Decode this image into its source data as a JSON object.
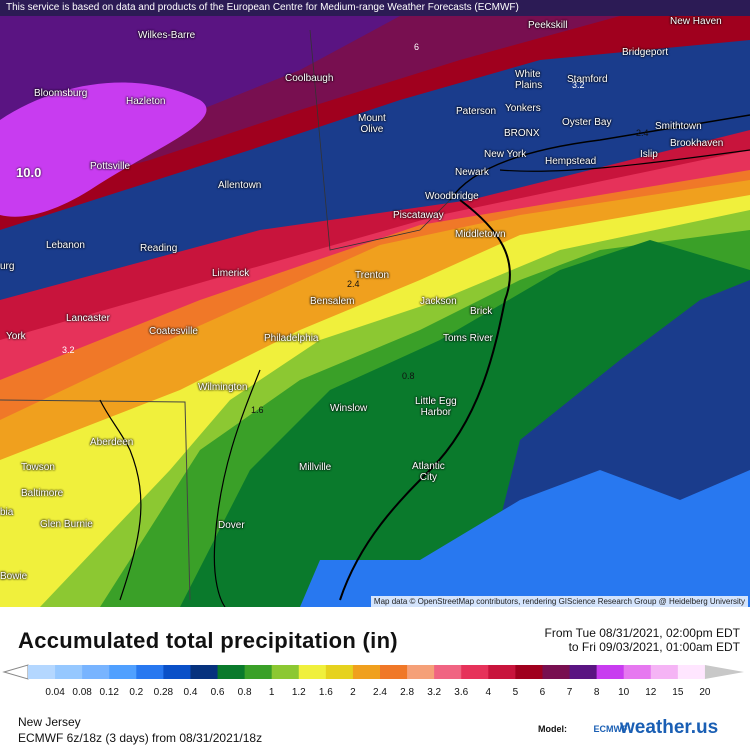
{
  "banner": "This service is based on data and products of the European Centre for Medium-range Weather Forecasts (ECMWF)",
  "attribution": "Map data © OpenStreetMap contributors, rendering GIScience Research Group @ Heidelberg University",
  "cities": [
    {
      "id": "peekskill",
      "name": "Peekskill"
    },
    {
      "id": "new-haven",
      "name": "New Haven"
    },
    {
      "id": "wilkes-barre",
      "name": "Wilkes-Barre"
    },
    {
      "id": "bridgeport",
      "name": "Bridgeport"
    },
    {
      "id": "bloomsburg",
      "name": "Bloomsburg"
    },
    {
      "id": "coolbaugh",
      "name": "Coolbaugh"
    },
    {
      "id": "white-plains",
      "name": "White\nPlains"
    },
    {
      "id": "stamford",
      "name": "Stamford"
    },
    {
      "id": "hazleton",
      "name": "Hazleton"
    },
    {
      "id": "paterson",
      "name": "Paterson"
    },
    {
      "id": "yonkers",
      "name": "Yonkers"
    },
    {
      "id": "mount-olive",
      "name": "Mount\nOlive"
    },
    {
      "id": "oyster-bay",
      "name": "Oyster Bay"
    },
    {
      "id": "smithtown",
      "name": "Smithtown"
    },
    {
      "id": "bronx",
      "name": "BRONX"
    },
    {
      "id": "brookhaven",
      "name": "Brookhaven"
    },
    {
      "id": "pottsville",
      "name": "Pottsville"
    },
    {
      "id": "new-york",
      "name": "New York"
    },
    {
      "id": "hempstead",
      "name": "Hempstead"
    },
    {
      "id": "islip",
      "name": "Islip"
    },
    {
      "id": "newark",
      "name": "Newark"
    },
    {
      "id": "allentown",
      "name": "Allentown"
    },
    {
      "id": "woodbridge",
      "name": "Woodbridge"
    },
    {
      "id": "piscataway",
      "name": "Piscataway"
    },
    {
      "id": "middletown",
      "name": "Middletown"
    },
    {
      "id": "lebanon",
      "name": "Lebanon"
    },
    {
      "id": "reading",
      "name": "Reading"
    },
    {
      "id": "limerick",
      "name": "Limerick"
    },
    {
      "id": "trenton",
      "name": "Trenton"
    },
    {
      "id": "bensalem",
      "name": "Bensalem"
    },
    {
      "id": "jackson",
      "name": "Jackson"
    },
    {
      "id": "lancaster",
      "name": "Lancaster"
    },
    {
      "id": "brick",
      "name": "Brick"
    },
    {
      "id": "coatesville",
      "name": "Coatesville"
    },
    {
      "id": "toms-river",
      "name": "Toms River"
    },
    {
      "id": "york",
      "name": "York"
    },
    {
      "id": "philadelphia",
      "name": "Philadelphia"
    },
    {
      "id": "wilmington",
      "name": "Wilmington"
    },
    {
      "id": "winslow",
      "name": "Winslow"
    },
    {
      "id": "little-egg-harbor",
      "name": "Little Egg\nHarbor"
    },
    {
      "id": "aberdeen",
      "name": "Aberdeen"
    },
    {
      "id": "atlantic-city",
      "name": "Atlantic\nCity"
    },
    {
      "id": "towson",
      "name": "Towson"
    },
    {
      "id": "millville",
      "name": "Millville"
    },
    {
      "id": "baltimore",
      "name": "Baltimore"
    },
    {
      "id": "glen-burnie",
      "name": "Glen Burnie"
    },
    {
      "id": "dover",
      "name": "Dover"
    },
    {
      "id": "bowie",
      "name": "Bowie"
    },
    {
      "id": "bia",
      "name": "bia"
    },
    {
      "id": "urg",
      "name": "urg"
    }
  ],
  "contour_values": [
    {
      "id": "v10",
      "text": "10.0",
      "big": true
    },
    {
      "id": "v32a",
      "text": "3.2"
    },
    {
      "id": "v32b",
      "text": "3.2"
    },
    {
      "id": "v24a",
      "text": "2.4"
    },
    {
      "id": "v24b",
      "text": "2.4"
    },
    {
      "id": "v16",
      "text": "1.6"
    },
    {
      "id": "v08",
      "text": "0.8"
    },
    {
      "id": "v6",
      "text": "6"
    }
  ],
  "legend": {
    "title": "Accumulated total precipitation (in)",
    "period_from": "From Tue 08/31/2021, 02:00pm EDT",
    "period_to": "to Fri 09/03/2021, 01:00am EDT",
    "bins": [
      {
        "label": "0.04",
        "color": "#b4d7ff"
      },
      {
        "label": "0.08",
        "color": "#96c8ff"
      },
      {
        "label": "0.12",
        "color": "#78b4ff"
      },
      {
        "label": "0.2",
        "color": "#50a0ff"
      },
      {
        "label": "0.28",
        "color": "#2878f0"
      },
      {
        "label": "0.4",
        "color": "#0a50c8"
      },
      {
        "label": "0.6",
        "color": "#06327e"
      },
      {
        "label": "0.8",
        "color": "#0a7a2c"
      },
      {
        "label": "1",
        "color": "#3aa028"
      },
      {
        "label": "1.2",
        "color": "#8cc832"
      },
      {
        "label": "1.6",
        "color": "#f0f03c"
      },
      {
        "label": "2",
        "color": "#e6d21e"
      },
      {
        "label": "2.4",
        "color": "#f0a01e"
      },
      {
        "label": "2.8",
        "color": "#f07828"
      },
      {
        "label": "3.2",
        "color": "#f5a078"
      },
      {
        "label": "3.6",
        "color": "#f06482"
      },
      {
        "label": "4",
        "color": "#e6325a"
      },
      {
        "label": "5",
        "color": "#c8143c"
      },
      {
        "label": "6",
        "color": "#a0001e"
      },
      {
        "label": "7",
        "color": "#780f50"
      },
      {
        "label": "8",
        "color": "#5a1482"
      },
      {
        "label": "10",
        "color": "#c83cf0"
      },
      {
        "label": "12",
        "color": "#e678f0"
      },
      {
        "label": "15",
        "color": "#f5b4f5"
      },
      {
        "label": "20",
        "color": "#ffe6ff"
      }
    ],
    "over_color": "#c8c8c8"
  },
  "region": "New Jersey",
  "run_info": "ECMWF 6z/18z (3 days) from 08/31/2021/18z",
  "model_label": "Model:",
  "model_name": "ECMWF",
  "brand": "weather.us"
}
